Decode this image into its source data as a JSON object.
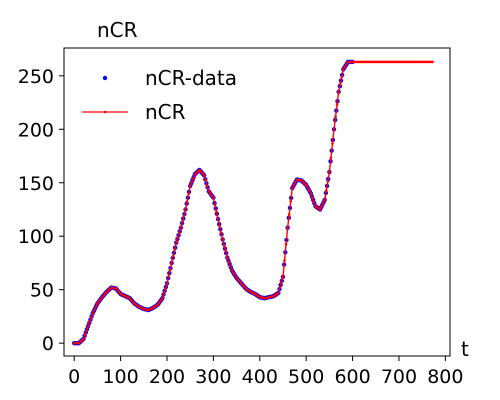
{
  "chart_data": {
    "type": "line",
    "title": "",
    "xlabel": "t",
    "ylabel": "nCR",
    "xlim": [
      -22,
      810
    ],
    "ylim": [
      -12,
      276
    ],
    "xticks": [
      0,
      100,
      200,
      300,
      400,
      500,
      600,
      700,
      800
    ],
    "yticks": [
      0,
      50,
      100,
      150,
      200,
      250
    ],
    "grid": false,
    "legend_position": "top-left",
    "series": [
      {
        "name": "nCR-data",
        "style": "points",
        "color": "#0000ff",
        "x": [
          0,
          10,
          20,
          30,
          40,
          50,
          60,
          70,
          80,
          90,
          100,
          110,
          120,
          130,
          140,
          150,
          160,
          170,
          180,
          190,
          200,
          210,
          220,
          230,
          240,
          250,
          260,
          270,
          280,
          290,
          300,
          310,
          320,
          330,
          340,
          350,
          360,
          370,
          380,
          390,
          400,
          410,
          420,
          430,
          440,
          450,
          460,
          470,
          480,
          490,
          500,
          510,
          520,
          530,
          540,
          550,
          560,
          570,
          580,
          590,
          600
        ],
        "y": [
          0,
          0,
          4,
          16,
          28,
          37,
          43,
          48,
          52,
          51,
          46,
          44,
          42,
          37,
          34,
          32,
          31,
          33,
          36,
          42,
          56,
          75,
          94,
          108,
          125,
          147,
          158,
          162,
          157,
          142,
          136,
          116,
          97,
          80,
          68,
          61,
          56,
          51,
          48,
          46,
          43,
          42,
          43,
          44,
          47,
          62,
          108,
          145,
          153,
          152,
          148,
          140,
          128,
          125,
          134,
          160,
          200,
          235,
          256,
          263,
          263
        ]
      },
      {
        "name": "nCR",
        "style": "line",
        "color": "#ff0000",
        "x": [
          0,
          10,
          20,
          30,
          40,
          50,
          60,
          70,
          80,
          90,
          100,
          110,
          120,
          130,
          140,
          150,
          160,
          170,
          180,
          190,
          200,
          210,
          220,
          230,
          240,
          250,
          260,
          270,
          280,
          290,
          300,
          310,
          320,
          330,
          340,
          350,
          360,
          370,
          380,
          390,
          400,
          410,
          420,
          430,
          440,
          450,
          460,
          470,
          480,
          490,
          500,
          510,
          520,
          530,
          540,
          550,
          560,
          570,
          580,
          590,
          600,
          650,
          700,
          775
        ],
        "y": [
          0,
          0,
          4,
          16,
          28,
          37,
          43,
          48,
          52,
          51,
          46,
          44,
          42,
          37,
          34,
          32,
          31,
          33,
          36,
          42,
          56,
          75,
          94,
          108,
          125,
          147,
          158,
          162,
          157,
          142,
          136,
          116,
          97,
          80,
          68,
          61,
          56,
          51,
          48,
          46,
          43,
          42,
          43,
          44,
          47,
          62,
          108,
          145,
          153,
          152,
          148,
          140,
          128,
          125,
          134,
          160,
          200,
          235,
          256,
          263,
          263,
          263,
          263,
          263
        ]
      }
    ]
  }
}
